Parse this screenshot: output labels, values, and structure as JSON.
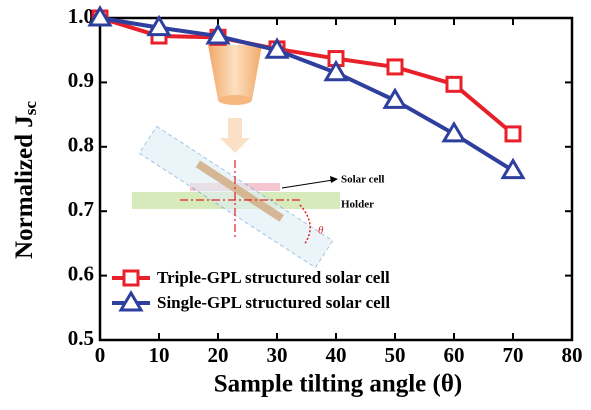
{
  "chart_data": {
    "type": "line",
    "xlabel": "Sample tilting angle (θ)",
    "ylabel": {
      "text": "Normalized J",
      "subscript": "sc"
    },
    "x": [
      0,
      10,
      20,
      30,
      40,
      50,
      60,
      70
    ],
    "series": [
      {
        "name": "Triple-GPL structured solar cell",
        "color": "#e8202a",
        "marker": "square",
        "values": [
          1.0,
          0.972,
          0.97,
          0.952,
          0.937,
          0.924,
          0.897,
          0.82
        ]
      },
      {
        "name": "Single-GPL structured solar cell",
        "color": "#2e3f9e",
        "marker": "triangle",
        "values": [
          1.0,
          0.985,
          0.972,
          0.95,
          0.915,
          0.872,
          0.82,
          0.763
        ]
      }
    ],
    "xlim": [
      0,
      80
    ],
    "xticks": [
      0,
      10,
      20,
      30,
      40,
      50,
      60,
      70,
      80
    ],
    "ylim": [
      0.5,
      1.0
    ],
    "yticks": [
      0.5,
      0.6,
      0.7,
      0.8,
      0.9,
      {
        "value": 1.0,
        "label": "1.0"
      }
    ],
    "legend": "lower left",
    "annotations": [
      "Solar cell",
      "Holder",
      "θ"
    ]
  }
}
